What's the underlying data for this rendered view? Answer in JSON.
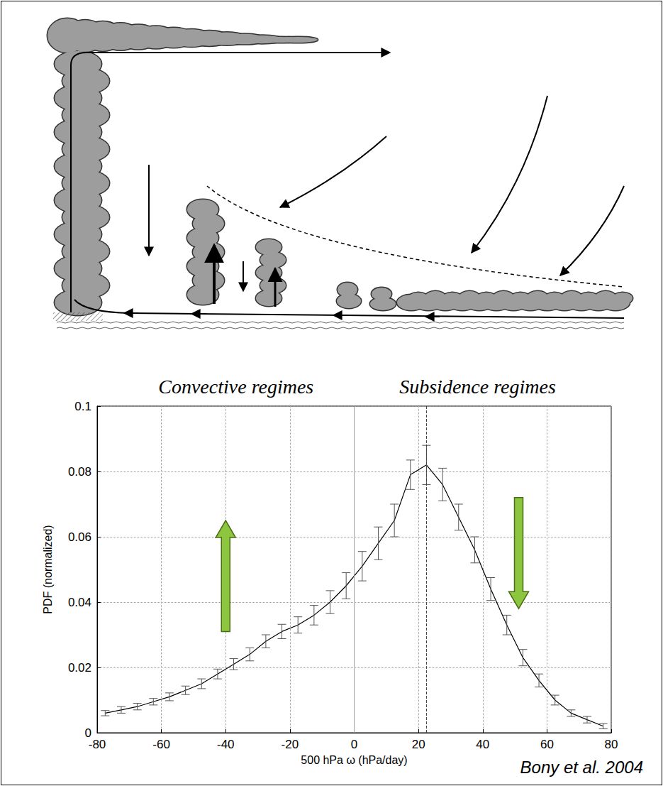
{
  "chart_data": {
    "type": "line",
    "x": [
      -77.5,
      -72.5,
      -67.5,
      -62.5,
      -57.5,
      -52.5,
      -47.5,
      -42.5,
      -37.5,
      -32.5,
      -27.5,
      -22.5,
      -17.5,
      -12.5,
      -7.5,
      -2.5,
      2.5,
      7.5,
      12.5,
      17.5,
      22.5,
      27.5,
      32.5,
      37.5,
      42.5,
      47.5,
      52.5,
      57.5,
      62.5,
      67.5,
      72.5,
      77.5
    ],
    "values": [
      0.006,
      0.007,
      0.008,
      0.0095,
      0.011,
      0.013,
      0.015,
      0.018,
      0.021,
      0.024,
      0.028,
      0.031,
      0.033,
      0.036,
      0.04,
      0.045,
      0.051,
      0.058,
      0.065,
      0.079,
      0.082,
      0.076,
      0.066,
      0.056,
      0.044,
      0.033,
      0.023,
      0.016,
      0.01,
      0.006,
      0.004,
      0.002
    ],
    "errors": [
      0.0008,
      0.001,
      0.001,
      0.001,
      0.0012,
      0.0013,
      0.0015,
      0.0015,
      0.0017,
      0.002,
      0.002,
      0.0022,
      0.0025,
      0.003,
      0.0035,
      0.004,
      0.0045,
      0.005,
      0.005,
      0.0045,
      0.006,
      0.005,
      0.004,
      0.004,
      0.0035,
      0.003,
      0.0025,
      0.002,
      0.0015,
      0.001,
      0.001,
      0.0008
    ],
    "color": "#000000",
    "xlim": [
      -80,
      80
    ],
    "xticks": [
      -80,
      -60,
      -40,
      -20,
      0,
      20,
      40,
      60,
      80
    ],
    "ylim": [
      0,
      0.1
    ],
    "yticks": [
      0,
      0.02,
      0.04,
      0.06,
      0.08,
      0.1
    ],
    "grid": true,
    "xlabel": "500 hPa ω (hPa/day)",
    "ylabel": "PDF (normalized)",
    "annotations": [
      "Convective regimes",
      "Subsidence regimes"
    ],
    "source": "Bony et al. 2004",
    "reference_lines": [
      {
        "x": 0,
        "line_style": "solid"
      },
      {
        "x": 22.5,
        "line_style": "dashed"
      }
    ]
  }
}
